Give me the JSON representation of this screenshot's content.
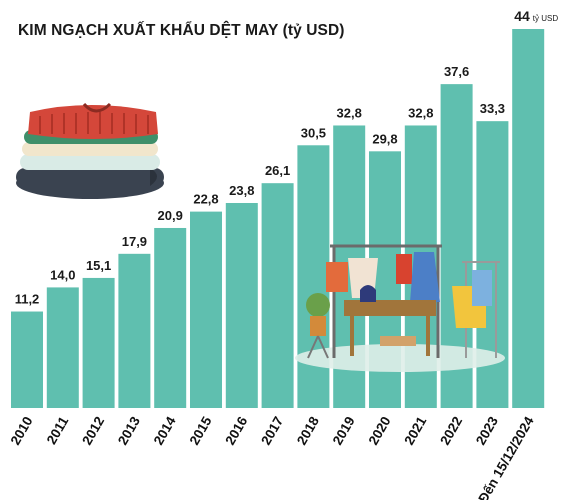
{
  "chart_data": {
    "type": "bar",
    "title": "KIM NGẠCH XUẤT KHẨU DỆT MAY (tỷ USD)",
    "categories": [
      "2010",
      "2011",
      "2012",
      "2013",
      "2014",
      "2015",
      "2016",
      "2017",
      "2018",
      "2019",
      "2020",
      "2021",
      "2022",
      "2023",
      "Đến 15/12/2024"
    ],
    "values": [
      11.2,
      14.0,
      15.1,
      17.9,
      20.9,
      22.8,
      23.8,
      26.1,
      30.5,
      32.8,
      29.8,
      32.8,
      37.6,
      33.3,
      44
    ],
    "value_labels": [
      "11,2",
      "14,0",
      "15,1",
      "17,9",
      "20,9",
      "22,8",
      "23,8",
      "26,1",
      "30,5",
      "32,8",
      "29,8",
      "32,8",
      "37,6",
      "33,3",
      "44"
    ],
    "last_value_unit": "tỷ USD",
    "xlabel": "",
    "ylabel": "",
    "ylim": [
      0,
      44
    ],
    "grid": false,
    "legend": "none",
    "bar_color": "#5fbfaf"
  },
  "illustrations": {
    "left": "folded-clothes-stack-icon",
    "right": "clothing-rack-shop-icon"
  }
}
